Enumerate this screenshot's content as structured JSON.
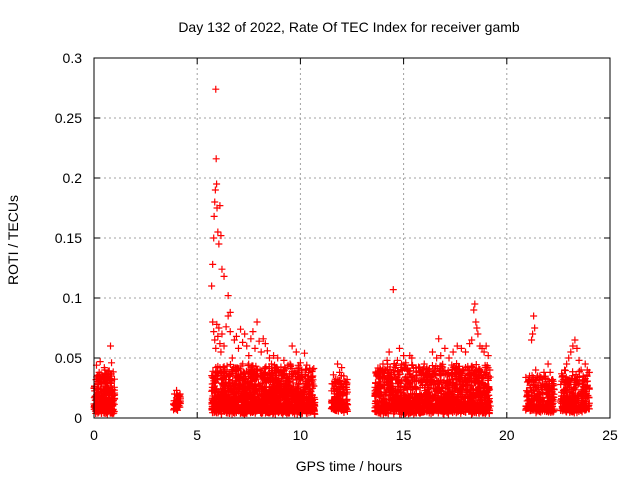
{
  "chart_data": {
    "type": "scatter",
    "title": "Day 132 of 2022, Rate Of TEC Index for receiver gamb",
    "xlabel": "GPS time / hours",
    "ylabel": "ROTI / TECUs",
    "xlim": [
      0,
      25
    ],
    "ylim": [
      0,
      0.3
    ],
    "xticks": [
      0,
      5,
      10,
      15,
      20,
      25
    ],
    "xtick_labels": [
      "0",
      "5",
      "10",
      "15",
      "20",
      "25"
    ],
    "yticks": [
      0,
      0.05,
      0.1,
      0.15,
      0.2,
      0.25,
      0.3
    ],
    "ytick_labels": [
      "0",
      "0.05",
      "0.1",
      "0.15",
      "0.2",
      "0.25",
      "0.3"
    ],
    "grid": true,
    "marker": "+",
    "color": "#ff0000",
    "series": [
      {
        "points": [
          [
            0.0,
            0.025
          ],
          [
            0.05,
            0.018
          ],
          [
            0.1,
            0.032
          ],
          [
            0.12,
            0.044
          ],
          [
            0.15,
            0.012
          ],
          [
            0.2,
            0.028
          ],
          [
            0.25,
            0.038
          ],
          [
            0.3,
            0.047
          ],
          [
            0.35,
            0.022
          ],
          [
            0.4,
            0.035
          ],
          [
            0.45,
            0.015
          ],
          [
            0.5,
            0.042
          ],
          [
            0.55,
            0.026
          ],
          [
            0.6,
            0.03
          ],
          [
            0.65,
            0.01
          ],
          [
            0.7,
            0.034
          ],
          [
            0.75,
            0.02
          ],
          [
            0.8,
            0.06
          ],
          [
            0.85,
            0.046
          ],
          [
            0.9,
            0.024
          ],
          [
            0.95,
            0.016
          ],
          [
            0.08,
            0.008
          ],
          [
            0.28,
            0.014
          ],
          [
            0.48,
            0.009
          ],
          [
            0.68,
            0.013
          ],
          [
            0.88,
            0.011
          ],
          [
            3.9,
            0.02
          ],
          [
            3.95,
            0.012
          ],
          [
            4.0,
            0.023
          ],
          [
            4.05,
            0.016
          ],
          [
            4.1,
            0.009
          ],
          [
            4.15,
            0.019
          ],
          [
            5.7,
            0.11
          ],
          [
            5.75,
            0.128
          ],
          [
            5.8,
            0.15
          ],
          [
            5.82,
            0.168
          ],
          [
            5.85,
            0.18
          ],
          [
            5.88,
            0.19
          ],
          [
            5.9,
            0.274
          ],
          [
            5.92,
            0.216
          ],
          [
            5.94,
            0.195
          ],
          [
            5.96,
            0.175
          ],
          [
            6.0,
            0.155
          ],
          [
            6.05,
            0.145
          ],
          [
            6.1,
            0.177
          ],
          [
            6.15,
            0.152
          ],
          [
            6.2,
            0.124
          ],
          [
            6.3,
            0.118
          ],
          [
            6.5,
            0.102
          ],
          [
            6.6,
            0.088
          ],
          [
            5.75,
            0.08
          ],
          [
            5.8,
            0.072
          ],
          [
            5.85,
            0.065
          ],
          [
            5.9,
            0.058
          ],
          [
            5.95,
            0.078
          ],
          [
            6.0,
            0.068
          ],
          [
            6.05,
            0.075
          ],
          [
            6.1,
            0.062
          ],
          [
            6.15,
            0.055
          ],
          [
            6.2,
            0.07
          ],
          [
            6.3,
            0.06
          ],
          [
            6.4,
            0.076
          ],
          [
            6.5,
            0.085
          ],
          [
            6.6,
            0.072
          ],
          [
            6.7,
            0.05
          ],
          [
            6.8,
            0.065
          ],
          [
            6.9,
            0.068
          ],
          [
            7.0,
            0.058
          ],
          [
            7.1,
            0.074
          ],
          [
            7.2,
            0.063
          ],
          [
            7.3,
            0.07
          ],
          [
            7.4,
            0.06
          ],
          [
            7.5,
            0.052
          ],
          [
            7.6,
            0.066
          ],
          [
            7.7,
            0.072
          ],
          [
            7.8,
            0.058
          ],
          [
            7.9,
            0.08
          ],
          [
            8.0,
            0.064
          ],
          [
            8.1,
            0.055
          ],
          [
            8.2,
            0.066
          ],
          [
            8.3,
            0.062
          ],
          [
            8.4,
            0.056
          ],
          [
            8.5,
            0.05
          ],
          [
            8.6,
            0.045
          ],
          [
            8.7,
            0.052
          ],
          [
            8.8,
            0.042
          ],
          [
            8.9,
            0.05
          ],
          [
            9.0,
            0.038
          ],
          [
            9.2,
            0.048
          ],
          [
            9.4,
            0.044
          ],
          [
            9.6,
            0.06
          ],
          [
            9.8,
            0.055
          ],
          [
            10.0,
            0.046
          ],
          [
            10.2,
            0.054
          ],
          [
            10.4,
            0.038
          ],
          [
            10.6,
            0.035
          ],
          [
            9.5,
            0.045
          ],
          [
            9.9,
            0.04
          ],
          [
            11.6,
            0.036
          ],
          [
            11.7,
            0.03
          ],
          [
            11.8,
            0.045
          ],
          [
            11.9,
            0.038
          ],
          [
            12.0,
            0.042
          ],
          [
            12.1,
            0.035
          ],
          [
            12.2,
            0.03
          ],
          [
            13.7,
            0.035
          ],
          [
            13.9,
            0.03
          ],
          [
            14.0,
            0.045
          ],
          [
            14.2,
            0.048
          ],
          [
            14.3,
            0.055
          ],
          [
            14.4,
            0.038
          ],
          [
            14.5,
            0.107
          ],
          [
            14.6,
            0.042
          ],
          [
            14.7,
            0.048
          ],
          [
            14.8,
            0.058
          ],
          [
            14.9,
            0.045
          ],
          [
            15.0,
            0.052
          ],
          [
            15.1,
            0.046
          ],
          [
            15.2,
            0.04
          ],
          [
            15.3,
            0.052
          ],
          [
            15.4,
            0.05
          ],
          [
            15.6,
            0.042
          ],
          [
            15.8,
            0.038
          ],
          [
            16.0,
            0.045
          ],
          [
            16.2,
            0.04
          ],
          [
            16.4,
            0.055
          ],
          [
            16.6,
            0.05
          ],
          [
            16.7,
            0.066
          ],
          [
            16.8,
            0.052
          ],
          [
            17.0,
            0.058
          ],
          [
            17.2,
            0.05
          ],
          [
            17.4,
            0.055
          ],
          [
            17.6,
            0.06
          ],
          [
            17.8,
            0.058
          ],
          [
            18.0,
            0.055
          ],
          [
            18.2,
            0.062
          ],
          [
            18.3,
            0.065
          ],
          [
            18.4,
            0.09
          ],
          [
            18.45,
            0.095
          ],
          [
            18.5,
            0.08
          ],
          [
            18.55,
            0.075
          ],
          [
            18.6,
            0.07
          ],
          [
            18.7,
            0.06
          ],
          [
            18.8,
            0.058
          ],
          [
            18.9,
            0.055
          ],
          [
            19.0,
            0.06
          ],
          [
            19.1,
            0.052
          ],
          [
            21.0,
            0.03
          ],
          [
            21.1,
            0.035
          ],
          [
            21.2,
            0.065
          ],
          [
            21.25,
            0.07
          ],
          [
            21.3,
            0.085
          ],
          [
            21.35,
            0.075
          ],
          [
            21.4,
            0.04
          ],
          [
            21.6,
            0.035
          ],
          [
            21.8,
            0.038
          ],
          [
            22.0,
            0.045
          ],
          [
            22.1,
            0.038
          ],
          [
            22.2,
            0.032
          ],
          [
            22.7,
            0.035
          ],
          [
            22.8,
            0.04
          ],
          [
            22.9,
            0.045
          ],
          [
            23.0,
            0.05
          ],
          [
            23.1,
            0.055
          ],
          [
            23.2,
            0.06
          ],
          [
            23.3,
            0.065
          ],
          [
            23.4,
            0.058
          ],
          [
            23.5,
            0.048
          ],
          [
            23.6,
            0.04
          ],
          [
            23.7,
            0.035
          ],
          [
            23.8,
            0.045
          ],
          [
            23.9,
            0.04
          ],
          [
            24.0,
            0.038
          ]
        ]
      }
    ],
    "dense_bands": [
      {
        "x": [
          0.0,
          1.0
        ],
        "y": [
          0.003,
          0.035
        ],
        "count": 260
      },
      {
        "x": [
          3.85,
          4.2
        ],
        "y": [
          0.006,
          0.016
        ],
        "count": 40
      },
      {
        "x": [
          5.7,
          10.7
        ],
        "y": [
          0.003,
          0.04
        ],
        "count": 1500
      },
      {
        "x": [
          11.5,
          12.3
        ],
        "y": [
          0.004,
          0.03
        ],
        "count": 150
      },
      {
        "x": [
          13.6,
          19.2
        ],
        "y": [
          0.003,
          0.04
        ],
        "count": 1400
      },
      {
        "x": [
          20.9,
          22.3
        ],
        "y": [
          0.004,
          0.032
        ],
        "count": 260
      },
      {
        "x": [
          22.6,
          24.0
        ],
        "y": [
          0.004,
          0.035
        ],
        "count": 280
      }
    ]
  }
}
